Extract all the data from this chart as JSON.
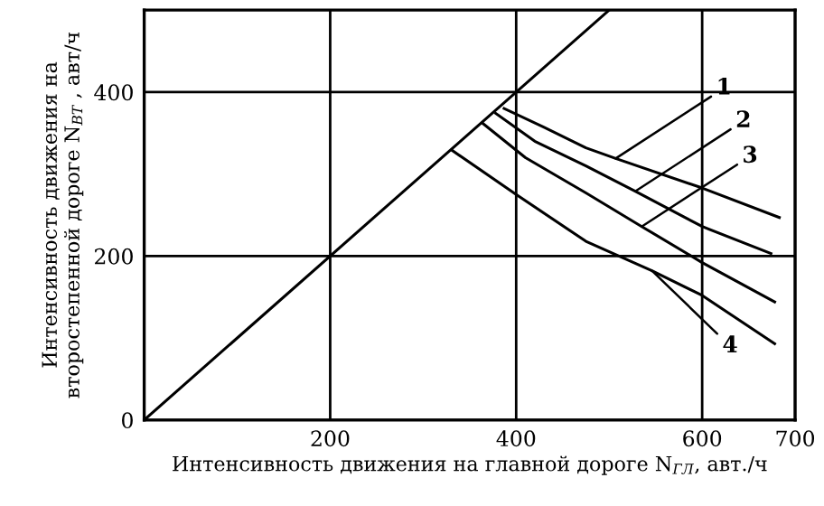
{
  "chart_data": {
    "type": "line",
    "xlabel": "Интенсивность движения на главной дороге N$_{ГЛ}$, авт./ч",
    "ylabel": "Интенсивность движения на\nвторостепенной дороге N$_{ВТ}$ , авт/ч",
    "xlim": [
      0,
      700
    ],
    "ylim": [
      0,
      500
    ],
    "xticks": [
      200,
      400,
      600,
      700
    ],
    "yticks": [
      0,
      200,
      400
    ],
    "grid": true,
    "series": [
      {
        "color": "#000000",
        "x": [
          0,
          500
        ],
        "values": [
          0,
          500
        ]
      },
      {
        "color": "#000000",
        "x": [
          387,
          430,
          475,
          507,
          600,
          683
        ],
        "values": [
          380,
          357,
          332,
          319,
          283,
          247
        ]
      },
      {
        "color": "#000000",
        "x": [
          378,
          420,
          475,
          528,
          600,
          674
        ],
        "values": [
          374,
          340,
          310,
          279,
          236,
          203
        ]
      },
      {
        "color": "#000000",
        "x": [
          364,
          410,
          475,
          535,
          600,
          678
        ],
        "values": [
          362,
          320,
          277,
          236,
          192,
          144
        ]
      },
      {
        "color": "#000000",
        "x": [
          331,
          400,
          475,
          546,
          600,
          678
        ],
        "values": [
          329,
          275,
          218,
          182,
          152,
          93
        ]
      }
    ],
    "annotations": [
      {
        "text": "1",
        "x": 507,
        "y": 319
      },
      {
        "text": "2",
        "x": 528,
        "y": 279
      },
      {
        "text": "3",
        "x": 535,
        "y": 236
      },
      {
        "text": "4",
        "x": 546,
        "y": 182
      }
    ]
  }
}
